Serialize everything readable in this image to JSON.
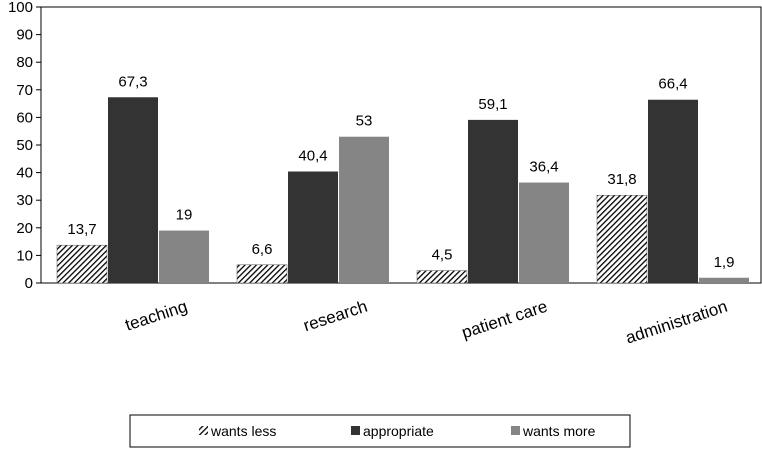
{
  "chart_data": {
    "type": "bar",
    "categories": [
      "teaching",
      "research",
      "patient care",
      "administration"
    ],
    "series": [
      {
        "name": "wants less",
        "values": [
          13.7,
          6.6,
          4.5,
          31.8
        ],
        "labels": [
          "13,7",
          "6,6",
          "4,5",
          "31,8"
        ],
        "color": "#000000",
        "pattern": "hatch"
      },
      {
        "name": "appropriate",
        "values": [
          67.3,
          40.4,
          59.1,
          66.4
        ],
        "labels": [
          "67,3",
          "40,4",
          "59,1",
          "66,4"
        ],
        "color": "#333333",
        "pattern": "solid"
      },
      {
        "name": "wants more",
        "values": [
          19,
          53,
          36.4,
          1.9
        ],
        "labels": [
          "19",
          "53",
          "36,4",
          "1,9"
        ],
        "color": "#858585",
        "pattern": "solid"
      }
    ],
    "ylim": [
      0,
      100
    ],
    "yticks": [
      "0",
      "10",
      "20",
      "30",
      "40",
      "50",
      "60",
      "70",
      "80",
      "90",
      "100"
    ],
    "grid": false,
    "legend_position": "bottom",
    "xlabel": "",
    "ylabel": ""
  }
}
